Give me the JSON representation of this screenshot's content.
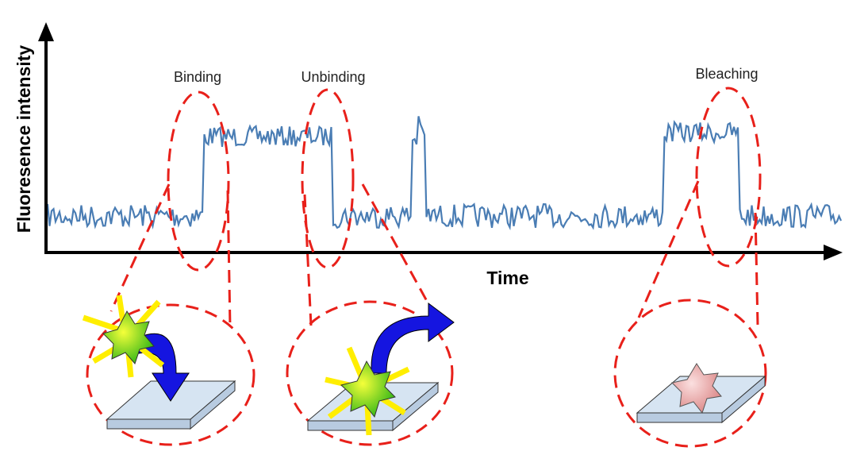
{
  "axes": {
    "y_label": "Fluoresence intensity",
    "x_label": "Time"
  },
  "annotations": [
    "Binding",
    "Unbinding",
    "Bleaching"
  ]
}
